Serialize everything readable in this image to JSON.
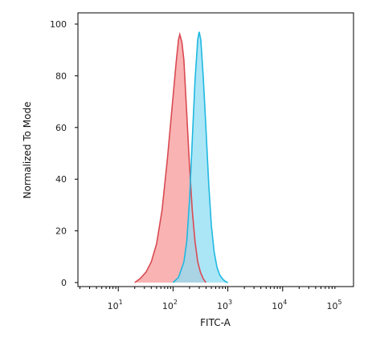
{
  "chart_data": {
    "type": "area",
    "title": "",
    "xlabel": "FITC-A",
    "ylabel": "Normalized To Mode",
    "x_scale": "log",
    "xlim": [
      1,
      100000
    ],
    "ylim": [
      0,
      100
    ],
    "grid": false,
    "legend": "none",
    "x_ticks": [
      {
        "value": 10,
        "base": "10",
        "exp": "1"
      },
      {
        "value": 100,
        "base": "10",
        "exp": "2"
      },
      {
        "value": 1000,
        "base": "10",
        "exp": "3"
      },
      {
        "value": 10000,
        "base": "10",
        "exp": "4"
      },
      {
        "value": 100000,
        "base": "10",
        "exp": "5"
      }
    ],
    "y_ticks": [
      {
        "value": 0,
        "label": "0"
      },
      {
        "value": 20,
        "label": "20"
      },
      {
        "value": 40,
        "label": "40"
      },
      {
        "value": 60,
        "label": "60"
      },
      {
        "value": 80,
        "label": "80"
      },
      {
        "value": 100,
        "label": "100"
      }
    ],
    "series": [
      {
        "color": "#F47A7A",
        "fill": "#F79A9A",
        "stroke": "#D94A52",
        "points": [
          [
            20,
            0
          ],
          [
            25,
            1.5
          ],
          [
            32,
            4
          ],
          [
            40,
            8
          ],
          [
            50,
            15
          ],
          [
            63,
            28
          ],
          [
            79,
            48
          ],
          [
            100,
            72
          ],
          [
            115,
            86
          ],
          [
            126,
            94
          ],
          [
            133,
            96
          ],
          [
            145,
            93
          ],
          [
            158,
            86
          ],
          [
            178,
            65
          ],
          [
            200,
            45
          ],
          [
            224,
            28
          ],
          [
            251,
            16
          ],
          [
            282,
            8
          ],
          [
            316,
            4
          ],
          [
            355,
            1.5
          ],
          [
            398,
            0
          ]
        ]
      },
      {
        "color": "#22C3EA",
        "fill": "#8FDDF4",
        "stroke": "#1FB8E0",
        "points": [
          [
            100,
            0
          ],
          [
            126,
            2
          ],
          [
            158,
            8
          ],
          [
            178,
            16
          ],
          [
            200,
            32
          ],
          [
            224,
            55
          ],
          [
            251,
            78
          ],
          [
            282,
            94
          ],
          [
            300,
            97
          ],
          [
            320,
            94
          ],
          [
            355,
            80
          ],
          [
            398,
            60
          ],
          [
            447,
            38
          ],
          [
            501,
            22
          ],
          [
            562,
            12
          ],
          [
            631,
            6
          ],
          [
            708,
            3
          ],
          [
            794,
            1.5
          ],
          [
            891,
            0.5
          ],
          [
            1000,
            0
          ]
        ]
      }
    ]
  }
}
